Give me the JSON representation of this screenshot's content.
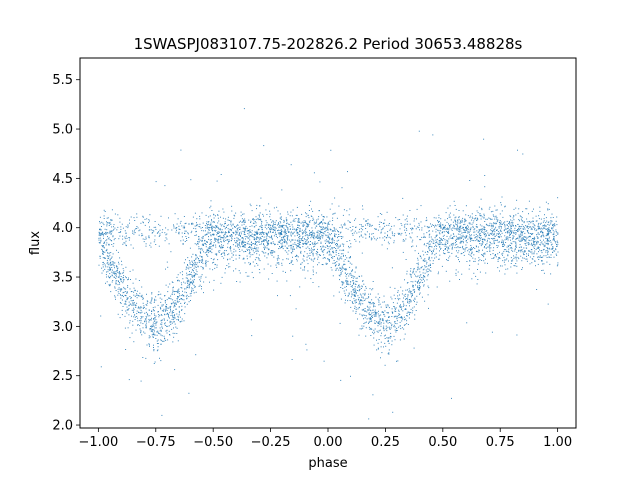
{
  "chart_data": {
    "type": "scatter",
    "title": "1SWASPJ083107.75-202826.2 Period 30653.48828s",
    "xlabel": "phase",
    "ylabel": "flux",
    "xlim": [
      -1.08,
      1.08
    ],
    "ylim": [
      1.97,
      5.72
    ],
    "xticks": [
      -1.0,
      -0.75,
      -0.5,
      -0.25,
      0.0,
      0.25,
      0.5,
      0.75,
      1.0
    ],
    "xtick_labels": [
      "−1.00",
      "−0.75",
      "−0.50",
      "−0.25",
      "0.00",
      "0.25",
      "0.50",
      "0.75",
      "1.00"
    ],
    "yticks": [
      2.0,
      2.5,
      3.0,
      3.5,
      4.0,
      4.5,
      5.0,
      5.5
    ],
    "ytick_labels": [
      "2.0",
      "2.5",
      "3.0",
      "3.5",
      "4.0",
      "4.5",
      "5.0",
      "5.5"
    ],
    "grid": false,
    "point_color": "#1f77b4",
    "series": [
      {
        "phase_range": [
          -1.0,
          1.0
        ],
        "baseline_flux": 3.88,
        "eclipses": [
          {
            "phase_center": -0.76,
            "min_flux": 3.05
          },
          {
            "phase_center": 0.24,
            "min_flux": 3.05
          }
        ],
        "secondary_band_flux": 3.98
      }
    ]
  }
}
